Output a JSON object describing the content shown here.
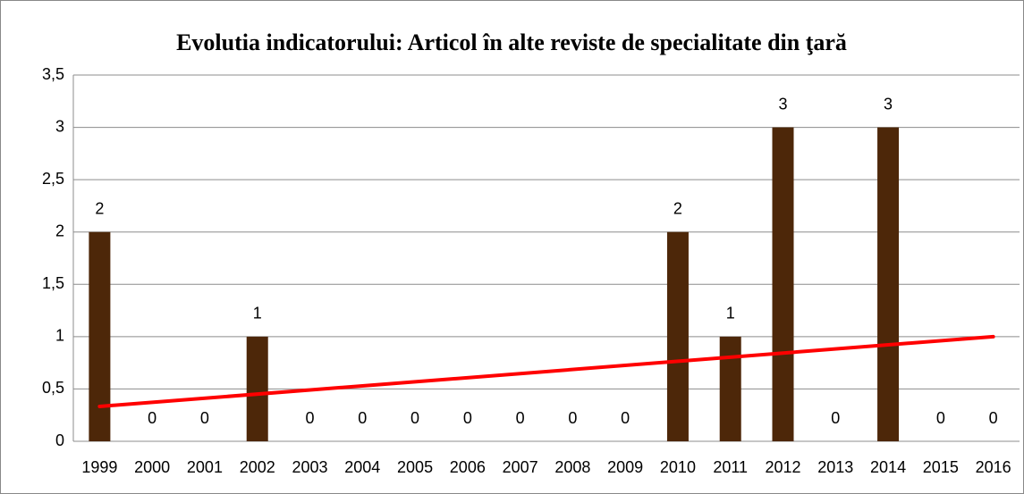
{
  "chart_data": {
    "type": "bar",
    "title": "Evolutia indicatorului: Articol în alte reviste de specialitate din ţară",
    "categories": [
      "1999",
      "2000",
      "2001",
      "2002",
      "2003",
      "2004",
      "2005",
      "2006",
      "2007",
      "2008",
      "2009",
      "2010",
      "2011",
      "2012",
      "2013",
      "2014",
      "2015",
      "2016"
    ],
    "values": [
      2,
      0,
      0,
      1,
      0,
      0,
      0,
      0,
      0,
      0,
      0,
      2,
      1,
      3,
      0,
      3,
      0,
      0
    ],
    "color": "#4d2709",
    "ylim": [
      0,
      3.5
    ],
    "yticks": [
      0,
      {
        "value": 0.5,
        "label": "0,5"
      },
      1,
      {
        "value": 1.5,
        "label": "1,5"
      },
      2,
      {
        "value": 2.5,
        "label": "2,5"
      },
      3,
      {
        "value": 3.5,
        "label": "3,5"
      }
    ],
    "grid": true,
    "trendline": true,
    "trendline_color": "#ff0000"
  }
}
